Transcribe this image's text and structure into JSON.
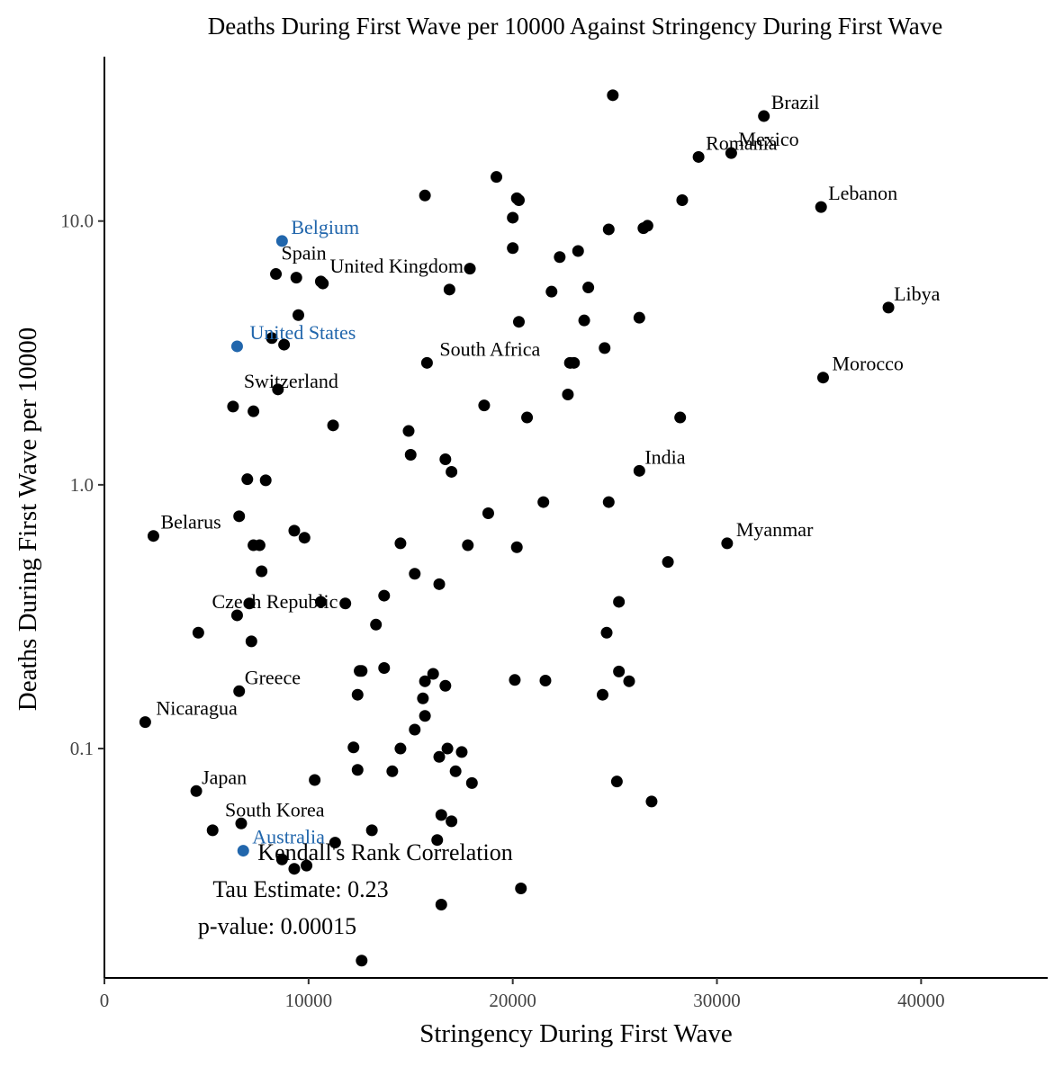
{
  "chart_data": {
    "type": "scatter",
    "title": "Deaths During First Wave per 10000 Against Stringency During First Wave",
    "xlabel": "Stringency During First Wave",
    "ylabel": "Deaths During First Wave per 10000",
    "x_scale": "linear",
    "y_scale": "log10",
    "xlim": [
      0,
      46200
    ],
    "ylim": [
      0.0135,
      42
    ],
    "x_ticks": [
      0,
      10000,
      20000,
      30000,
      40000
    ],
    "x_tick_labels": [
      "0",
      "10000",
      "20000",
      "30000",
      "40000"
    ],
    "y_ticks": [
      0.1,
      1.0,
      10.0
    ],
    "y_tick_labels": [
      "0.1",
      "1.0",
      "10.0"
    ],
    "grid": false,
    "legend": "none",
    "colors": {
      "default": "#000000",
      "highlight": "#2166ac"
    },
    "annotation": {
      "lines": [
        "Kendall's Rank Correlation",
        "Tau Estimate: 0.23",
        "p-value: 0.00015"
      ]
    },
    "points": [
      {
        "x": 32300,
        "y": 25,
        "label": "Brazil"
      },
      {
        "x": 30700,
        "y": 18.1,
        "label": "Mexico"
      },
      {
        "x": 29100,
        "y": 17.5,
        "label": "Romania"
      },
      {
        "x": 35100,
        "y": 11.3,
        "label": "Lebanon"
      },
      {
        "x": 38400,
        "y": 4.7,
        "label": "Libya"
      },
      {
        "x": 35200,
        "y": 2.55,
        "label": "Morocco"
      },
      {
        "x": 26200,
        "y": 1.13,
        "label": "India"
      },
      {
        "x": 30500,
        "y": 0.6,
        "label": "Myanmar"
      },
      {
        "x": 8700,
        "y": 8.4,
        "label": "Belgium",
        "highlight": true
      },
      {
        "x": 8400,
        "y": 6.3,
        "label": "Spain"
      },
      {
        "x": 10600,
        "y": 5.9,
        "label": "United Kingdom"
      },
      {
        "x": 6500,
        "y": 3.35,
        "label": "United States",
        "highlight": true
      },
      {
        "x": 15800,
        "y": 2.9,
        "label": "South Africa"
      },
      {
        "x": 8500,
        "y": 2.3,
        "label": "Switzerland"
      },
      {
        "x": 2400,
        "y": 0.64,
        "label": "Belarus"
      },
      {
        "x": 6500,
        "y": 0.32,
        "label": "Czech Republic"
      },
      {
        "x": 6600,
        "y": 0.165,
        "label": "Greece"
      },
      {
        "x": 2000,
        "y": 0.126,
        "label": "Nicaragua"
      },
      {
        "x": 4500,
        "y": 0.069,
        "label": "Japan"
      },
      {
        "x": 6700,
        "y": 0.052,
        "label": "South Korea"
      },
      {
        "x": 6800,
        "y": 0.041,
        "label": "Australia",
        "highlight": true
      },
      {
        "x": 24900,
        "y": 30
      },
      {
        "x": 19200,
        "y": 14.7
      },
      {
        "x": 15700,
        "y": 12.5
      },
      {
        "x": 20200,
        "y": 12.2
      },
      {
        "x": 20300,
        "y": 12.0
      },
      {
        "x": 28300,
        "y": 12.0
      },
      {
        "x": 20000,
        "y": 10.3
      },
      {
        "x": 24700,
        "y": 9.3
      },
      {
        "x": 26400,
        "y": 9.4
      },
      {
        "x": 26600,
        "y": 9.6
      },
      {
        "x": 20000,
        "y": 7.9
      },
      {
        "x": 23200,
        "y": 7.7
      },
      {
        "x": 22300,
        "y": 7.3
      },
      {
        "x": 17900,
        "y": 6.6
      },
      {
        "x": 9400,
        "y": 6.1
      },
      {
        "x": 10700,
        "y": 5.8
      },
      {
        "x": 16900,
        "y": 5.5
      },
      {
        "x": 21900,
        "y": 5.4
      },
      {
        "x": 23700,
        "y": 5.6
      },
      {
        "x": 9500,
        "y": 4.4
      },
      {
        "x": 20300,
        "y": 4.15
      },
      {
        "x": 23500,
        "y": 4.2
      },
      {
        "x": 26200,
        "y": 4.3
      },
      {
        "x": 8200,
        "y": 3.6
      },
      {
        "x": 8800,
        "y": 3.4
      },
      {
        "x": 24500,
        "y": 3.3
      },
      {
        "x": 22800,
        "y": 2.9
      },
      {
        "x": 23000,
        "y": 2.9
      },
      {
        "x": 22700,
        "y": 2.2
      },
      {
        "x": 6300,
        "y": 1.98
      },
      {
        "x": 7300,
        "y": 1.9
      },
      {
        "x": 18600,
        "y": 2.0
      },
      {
        "x": 20700,
        "y": 1.8
      },
      {
        "x": 28200,
        "y": 1.8
      },
      {
        "x": 11200,
        "y": 1.68
      },
      {
        "x": 14900,
        "y": 1.6
      },
      {
        "x": 15000,
        "y": 1.3
      },
      {
        "x": 16700,
        "y": 1.25
      },
      {
        "x": 17000,
        "y": 1.12
      },
      {
        "x": 7000,
        "y": 1.05
      },
      {
        "x": 7900,
        "y": 1.04
      },
      {
        "x": 21500,
        "y": 0.86
      },
      {
        "x": 24700,
        "y": 0.86
      },
      {
        "x": 18800,
        "y": 0.78
      },
      {
        "x": 6600,
        "y": 0.76
      },
      {
        "x": 9300,
        "y": 0.67
      },
      {
        "x": 9800,
        "y": 0.63
      },
      {
        "x": 7300,
        "y": 0.59
      },
      {
        "x": 7600,
        "y": 0.59
      },
      {
        "x": 14500,
        "y": 0.6
      },
      {
        "x": 17800,
        "y": 0.59
      },
      {
        "x": 20200,
        "y": 0.58
      },
      {
        "x": 27600,
        "y": 0.51
      },
      {
        "x": 7700,
        "y": 0.47
      },
      {
        "x": 15200,
        "y": 0.46
      },
      {
        "x": 16400,
        "y": 0.42
      },
      {
        "x": 13700,
        "y": 0.38
      },
      {
        "x": 7100,
        "y": 0.355
      },
      {
        "x": 10600,
        "y": 0.36
      },
      {
        "x": 11800,
        "y": 0.355
      },
      {
        "x": 25200,
        "y": 0.36
      },
      {
        "x": 4600,
        "y": 0.275
      },
      {
        "x": 7200,
        "y": 0.255
      },
      {
        "x": 13300,
        "y": 0.295
      },
      {
        "x": 24600,
        "y": 0.275
      },
      {
        "x": 12600,
        "y": 0.197
      },
      {
        "x": 12500,
        "y": 0.197
      },
      {
        "x": 13700,
        "y": 0.202
      },
      {
        "x": 16100,
        "y": 0.192
      },
      {
        "x": 15700,
        "y": 0.18
      },
      {
        "x": 16700,
        "y": 0.173
      },
      {
        "x": 20100,
        "y": 0.182
      },
      {
        "x": 21600,
        "y": 0.181
      },
      {
        "x": 25200,
        "y": 0.196
      },
      {
        "x": 25700,
        "y": 0.18
      },
      {
        "x": 12400,
        "y": 0.16
      },
      {
        "x": 15600,
        "y": 0.155
      },
      {
        "x": 24400,
        "y": 0.16
      },
      {
        "x": 15700,
        "y": 0.133
      },
      {
        "x": 15200,
        "y": 0.118
      },
      {
        "x": 12200,
        "y": 0.101
      },
      {
        "x": 14500,
        "y": 0.1
      },
      {
        "x": 16800,
        "y": 0.1
      },
      {
        "x": 17500,
        "y": 0.097
      },
      {
        "x": 16400,
        "y": 0.093
      },
      {
        "x": 12400,
        "y": 0.083
      },
      {
        "x": 14100,
        "y": 0.082
      },
      {
        "x": 17200,
        "y": 0.082
      },
      {
        "x": 10300,
        "y": 0.076
      },
      {
        "x": 18000,
        "y": 0.074
      },
      {
        "x": 25100,
        "y": 0.075
      },
      {
        "x": 26800,
        "y": 0.063
      },
      {
        "x": 16500,
        "y": 0.056
      },
      {
        "x": 17000,
        "y": 0.053
      },
      {
        "x": 5300,
        "y": 0.049
      },
      {
        "x": 13100,
        "y": 0.049
      },
      {
        "x": 11300,
        "y": 0.044
      },
      {
        "x": 16300,
        "y": 0.045
      },
      {
        "x": 8700,
        "y": 0.038
      },
      {
        "x": 9300,
        "y": 0.035
      },
      {
        "x": 9900,
        "y": 0.036
      },
      {
        "x": 20400,
        "y": 0.0295
      },
      {
        "x": 16500,
        "y": 0.0256
      },
      {
        "x": 12600,
        "y": 0.0157
      }
    ]
  }
}
